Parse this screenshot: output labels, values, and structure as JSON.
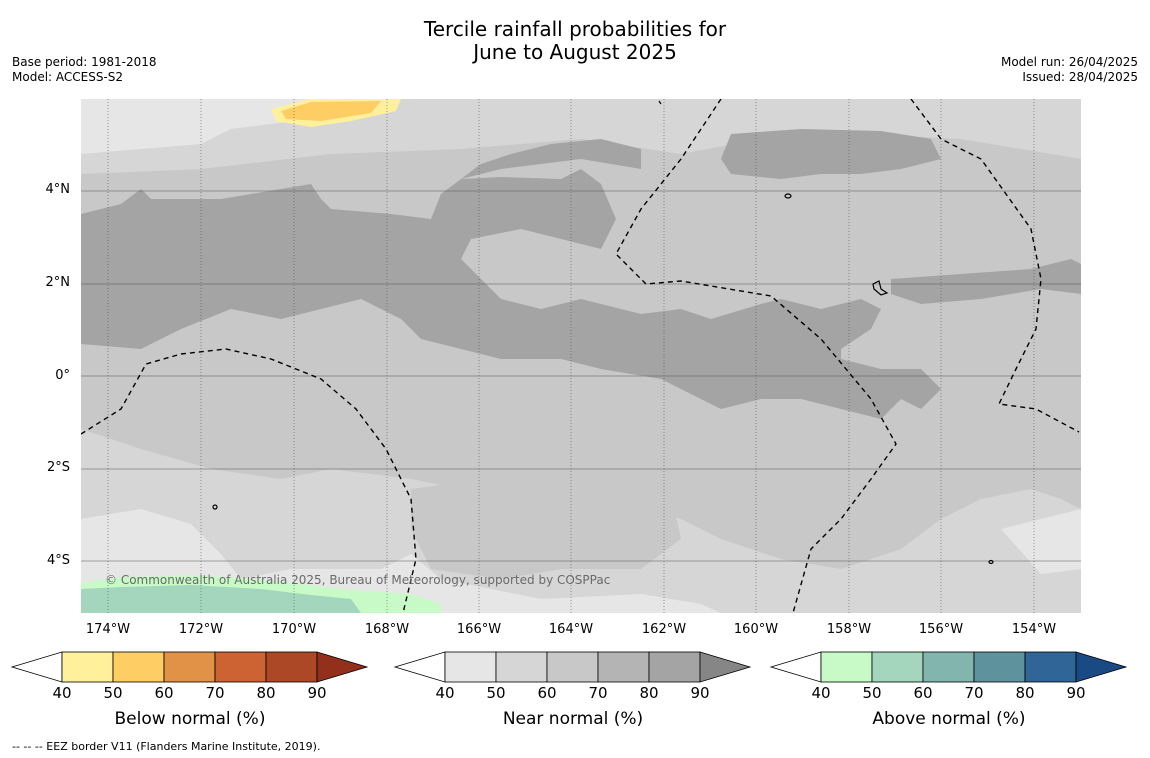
{
  "title": {
    "line1": "Tercile rainfall probabilities for",
    "line2": "June to August 2025"
  },
  "meta": {
    "base_period": "Base period: 1981-2018",
    "model": "Model: ACCESS-S2",
    "model_run": "Model run: 26/04/2025",
    "issued": "Issued: 28/04/2025"
  },
  "map": {
    "lat_labels": [
      "4°N",
      "2°N",
      "0°",
      "2°S",
      "4°S"
    ],
    "lon_labels": [
      "174°W",
      "172°W",
      "170°W",
      "168°W",
      "166°W",
      "164°W",
      "162°W",
      "160°W",
      "158°W",
      "156°W",
      "154°W"
    ],
    "copyright": "© Commonwealth of Australia 2025, Bureau of Meteorology, supported by COSPPac"
  },
  "legends": [
    {
      "title": "Below normal (%)",
      "ticks": [
        "40",
        "50",
        "60",
        "70",
        "80",
        "90"
      ],
      "colors": [
        "#fff09c",
        "#fecd64",
        "#e19246",
        "#cd6232",
        "#ad4826",
        "#93301c"
      ]
    },
    {
      "title": "Near normal (%)",
      "ticks": [
        "40",
        "50",
        "60",
        "70",
        "80",
        "90"
      ],
      "colors": [
        "#e6e6e6",
        "#d6d6d6",
        "#c8c8c8",
        "#b4b4b4",
        "#a4a4a4",
        "#868686"
      ]
    },
    {
      "title": "Above normal (%)",
      "ticks": [
        "40",
        "50",
        "60",
        "70",
        "80",
        "90"
      ],
      "colors": [
        "#c8fac8",
        "#a4d6be",
        "#82b5ad",
        "#5e939e",
        "#306598",
        "#1a4a83"
      ]
    }
  ],
  "footnote": "--  --  -- EEZ border V11 (Flanders Marine Institute, 2019)."
}
